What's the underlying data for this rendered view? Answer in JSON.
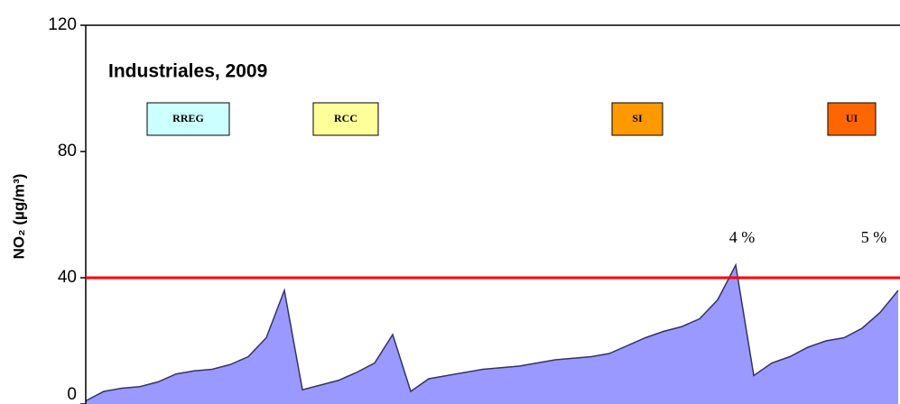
{
  "chart_data": {
    "type": "area",
    "title": "Industriales, 2009",
    "y_label": "NO₂ (µg/m³)",
    "values": [
      1,
      4,
      5,
      5.5,
      7,
      9.5,
      10.5,
      11,
      12.5,
      15,
      21,
      36,
      4.5,
      6,
      7.5,
      10,
      13,
      22,
      4,
      8,
      9,
      10,
      11,
      11.5,
      12,
      13,
      14,
      14.5,
      15,
      16,
      18.5,
      21,
      23,
      24.5,
      27,
      33,
      44,
      9,
      13,
      15,
      18,
      20,
      21,
      24,
      29,
      36
    ],
    "color": "#9999ff",
    "ylim": [
      0,
      120
    ],
    "yticks": [
      0,
      40,
      80,
      120
    ],
    "reference_line": {
      "value": 40,
      "color": "#ff0000"
    },
    "groups": [
      {
        "label": "RREG",
        "color": "#ccffff"
      },
      {
        "label": "RCC",
        "color": "#ffff99"
      },
      {
        "label": "SI",
        "color": "#ff9900"
      },
      {
        "label": "UI",
        "color": "#ff6600"
      }
    ],
    "annotations": [
      "4 %",
      "5 %"
    ]
  }
}
